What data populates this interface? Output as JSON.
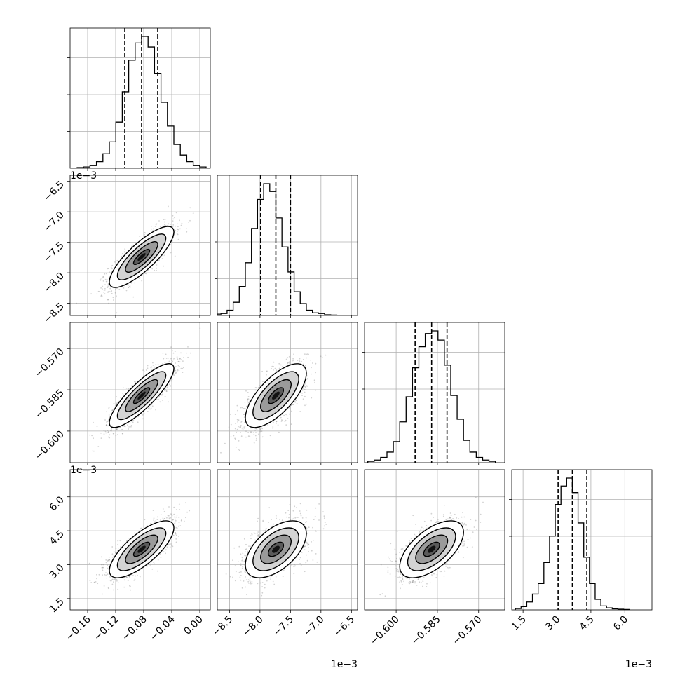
{
  "chart_data": {
    "type": "corner",
    "grid": true,
    "parameters": [
      {
        "range": [
          -0.185,
          0.015
        ],
        "ticks": [
          -0.16,
          -0.12,
          -0.08,
          -0.04,
          0.0
        ],
        "tick_labels": [
          "−0.16",
          "−0.12",
          "−0.08",
          "−0.04",
          "0.00"
        ],
        "offset": "",
        "quantiles": [
          -0.107,
          -0.083,
          -0.06
        ],
        "mean": -0.083,
        "sd": 0.023
      },
      {
        "range": [
          -8.7,
          -6.4
        ],
        "ticks": [
          -8.5,
          -8.0,
          -7.5,
          -7.0,
          -6.5
        ],
        "tick_labels": [
          "−8.5",
          "−8.0",
          "−7.5",
          "−7.0",
          "−6.5"
        ],
        "offset": "1e−3",
        "quantiles": [
          -7.99,
          -7.74,
          -7.5
        ],
        "mean": -7.74,
        "sd": 0.25
      },
      {
        "range": [
          -0.6115,
          -0.5605
        ],
        "ticks": [
          -0.6,
          -0.585,
          -0.57
        ],
        "tick_labels": [
          "−0.600",
          "−0.585",
          "−0.570"
        ],
        "offset": "",
        "quantiles": [
          -0.5931,
          -0.5871,
          -0.5815
        ],
        "mean": -0.5871,
        "sd": 0.0058
      },
      {
        "range": [
          1.0,
          7.2
        ],
        "ticks": [
          1.5,
          3.0,
          4.5,
          6.0
        ],
        "tick_labels": [
          "1.5",
          "3.0",
          "4.5",
          "6.0"
        ],
        "offset": "1e−3",
        "quantiles": [
          3.05,
          3.68,
          4.32
        ],
        "mean": 3.68,
        "sd": 0.63
      }
    ],
    "histograms": [
      [
        0.005,
        0.01,
        0.02,
        0.05,
        0.11,
        0.2,
        0.35,
        0.58,
        0.82,
        0.95,
        1.0,
        0.92,
        0.72,
        0.5,
        0.32,
        0.18,
        0.1,
        0.05,
        0.02,
        0.01
      ],
      [
        0.01,
        0.015,
        0.04,
        0.1,
        0.22,
        0.4,
        0.66,
        0.88,
        1.0,
        0.94,
        0.74,
        0.52,
        0.33,
        0.18,
        0.09,
        0.04,
        0.02,
        0.015,
        0.005,
        0.003
      ],
      [
        0.01,
        0.02,
        0.04,
        0.08,
        0.16,
        0.31,
        0.5,
        0.72,
        0.88,
        0.98,
        1.0,
        0.93,
        0.74,
        0.51,
        0.33,
        0.17,
        0.08,
        0.04,
        0.02,
        0.01
      ],
      [
        0.01,
        0.025,
        0.06,
        0.12,
        0.2,
        0.36,
        0.56,
        0.8,
        0.94,
        1.0,
        0.89,
        0.66,
        0.4,
        0.2,
        0.08,
        0.03,
        0.015,
        0.008,
        0.005,
        0.003
      ]
    ],
    "correlations": {
      "1-0": 0.82,
      "2-0": 0.85,
      "2-1": 0.7,
      "3-0": 0.75,
      "3-1": 0.55,
      "3-2": 0.6
    },
    "contour_levels_sigma": [
      0.5,
      1.0,
      1.5,
      2.0
    ],
    "contour_color": "#000000",
    "point_color": "#7f7f7f"
  }
}
